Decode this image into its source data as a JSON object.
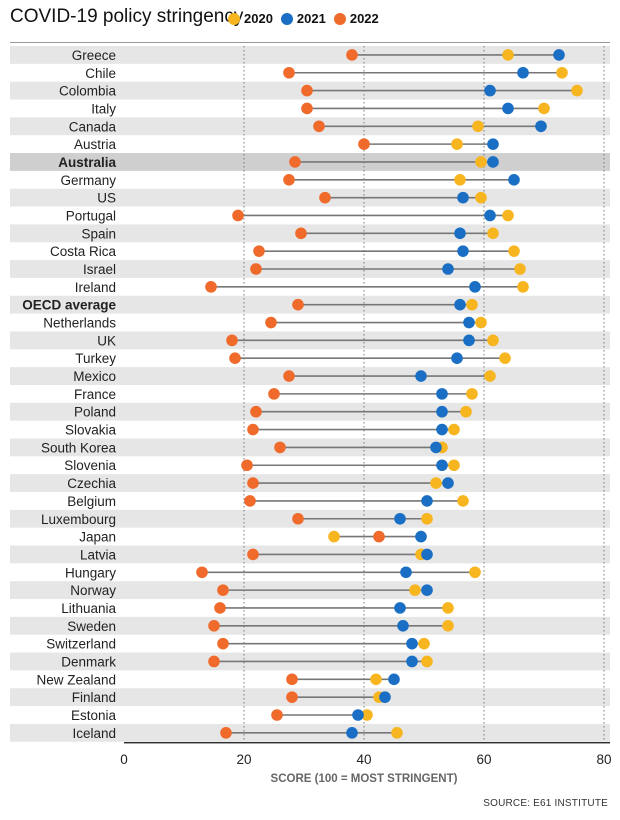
{
  "chart_data": {
    "type": "dumbbell",
    "title": "COVID-19 policy stringency",
    "xlabel": "SCORE (100 = MOST STRINGENT)",
    "xlim": [
      0,
      80
    ],
    "xticks": [
      0,
      20,
      40,
      60,
      80
    ],
    "source": "SOURCE: E61 INSTITUTE",
    "series": [
      {
        "name": "2020",
        "color": "#f7b520"
      },
      {
        "name": "2021",
        "color": "#1a6fc4"
      },
      {
        "name": "2022",
        "color": "#ef6a2b"
      }
    ],
    "rows": [
      {
        "country": "Greece",
        "v2020": 64,
        "v2021": 72.5,
        "v2022": 38,
        "bold": false,
        "highlight": false
      },
      {
        "country": "Chile",
        "v2020": 73,
        "v2021": 66.5,
        "v2022": 27.5,
        "bold": false,
        "highlight": false
      },
      {
        "country": "Colombia",
        "v2020": 75.5,
        "v2021": 61,
        "v2022": 30.5,
        "bold": false,
        "highlight": false
      },
      {
        "country": "Italy",
        "v2020": 70,
        "v2021": 64,
        "v2022": 30.5,
        "bold": false,
        "highlight": false
      },
      {
        "country": "Canada",
        "v2020": 59,
        "v2021": 69.5,
        "v2022": 32.5,
        "bold": false,
        "highlight": false
      },
      {
        "country": "Austria",
        "v2020": 55.5,
        "v2021": 61.5,
        "v2022": 40,
        "bold": false,
        "highlight": false
      },
      {
        "country": "Australia",
        "v2020": 59.5,
        "v2021": 61.5,
        "v2022": 28.5,
        "bold": true,
        "highlight": true
      },
      {
        "country": "Germany",
        "v2020": 56,
        "v2021": 65,
        "v2022": 27.5,
        "bold": false,
        "highlight": false
      },
      {
        "country": "US",
        "v2020": 59.5,
        "v2021": 56.5,
        "v2022": 33.5,
        "bold": false,
        "highlight": false
      },
      {
        "country": "Portugal",
        "v2020": 64,
        "v2021": 61,
        "v2022": 19,
        "bold": false,
        "highlight": false
      },
      {
        "country": "Spain",
        "v2020": 61.5,
        "v2021": 56,
        "v2022": 29.5,
        "bold": false,
        "highlight": false
      },
      {
        "country": "Costa Rica",
        "v2020": 65,
        "v2021": 56.5,
        "v2022": 22.5,
        "bold": false,
        "highlight": false
      },
      {
        "country": "Israel",
        "v2020": 66,
        "v2021": 54,
        "v2022": 22,
        "bold": false,
        "highlight": false
      },
      {
        "country": "Ireland",
        "v2020": 66.5,
        "v2021": 58.5,
        "v2022": 14.5,
        "bold": false,
        "highlight": false
      },
      {
        "country": "OECD average",
        "v2020": 58,
        "v2021": 56,
        "v2022": 29,
        "bold": true,
        "highlight": false
      },
      {
        "country": "Netherlands",
        "v2020": 59.5,
        "v2021": 57.5,
        "v2022": 24.5,
        "bold": false,
        "highlight": false
      },
      {
        "country": "UK",
        "v2020": 61.5,
        "v2021": 57.5,
        "v2022": 18,
        "bold": false,
        "highlight": false
      },
      {
        "country": "Turkey",
        "v2020": 63.5,
        "v2021": 55.5,
        "v2022": 18.5,
        "bold": false,
        "highlight": false
      },
      {
        "country": "Mexico",
        "v2020": 61,
        "v2021": 49.5,
        "v2022": 27.5,
        "bold": false,
        "highlight": false
      },
      {
        "country": "France",
        "v2020": 58,
        "v2021": 53,
        "v2022": 25,
        "bold": false,
        "highlight": false
      },
      {
        "country": "Poland",
        "v2020": 57,
        "v2021": 53,
        "v2022": 22,
        "bold": false,
        "highlight": false
      },
      {
        "country": "Slovakia",
        "v2020": 55,
        "v2021": 53,
        "v2022": 21.5,
        "bold": false,
        "highlight": false
      },
      {
        "country": "South Korea",
        "v2020": 53,
        "v2021": 52,
        "v2022": 26,
        "bold": false,
        "highlight": false
      },
      {
        "country": "Slovenia",
        "v2020": 55,
        "v2021": 53,
        "v2022": 20.5,
        "bold": false,
        "highlight": false
      },
      {
        "country": "Czechia",
        "v2020": 52,
        "v2021": 54,
        "v2022": 21.5,
        "bold": false,
        "highlight": false
      },
      {
        "country": "Belgium",
        "v2020": 56.5,
        "v2021": 50.5,
        "v2022": 21,
        "bold": false,
        "highlight": false
      },
      {
        "country": "Luxembourg",
        "v2020": 50.5,
        "v2021": 46,
        "v2022": 29,
        "bold": false,
        "highlight": false
      },
      {
        "country": "Japan",
        "v2020": 35,
        "v2021": 49.5,
        "v2022": 42.5,
        "bold": false,
        "highlight": false
      },
      {
        "country": "Latvia",
        "v2020": 49.5,
        "v2021": 50.5,
        "v2022": 21.5,
        "bold": false,
        "highlight": false
      },
      {
        "country": "Hungary",
        "v2020": 58.5,
        "v2021": 47,
        "v2022": 13,
        "bold": false,
        "highlight": false
      },
      {
        "country": "Norway",
        "v2020": 48.5,
        "v2021": 50.5,
        "v2022": 16.5,
        "bold": false,
        "highlight": false
      },
      {
        "country": "Lithuania",
        "v2020": 54,
        "v2021": 46,
        "v2022": 16,
        "bold": false,
        "highlight": false
      },
      {
        "country": "Sweden",
        "v2020": 54,
        "v2021": 46.5,
        "v2022": 15,
        "bold": false,
        "highlight": false
      },
      {
        "country": "Switzerland",
        "v2020": 50,
        "v2021": 48,
        "v2022": 16.5,
        "bold": false,
        "highlight": false
      },
      {
        "country": "Denmark",
        "v2020": 50.5,
        "v2021": 48,
        "v2022": 15,
        "bold": false,
        "highlight": false
      },
      {
        "country": "New Zealand",
        "v2020": 42,
        "v2021": 45,
        "v2022": 28,
        "bold": false,
        "highlight": false
      },
      {
        "country": "Finland",
        "v2020": 42.5,
        "v2021": 43.5,
        "v2022": 28,
        "bold": false,
        "highlight": false
      },
      {
        "country": "Estonia",
        "v2020": 40.5,
        "v2021": 39,
        "v2022": 25.5,
        "bold": false,
        "highlight": false
      },
      {
        "country": "Iceland",
        "v2020": 45.5,
        "v2021": 38,
        "v2022": 17,
        "bold": false,
        "highlight": false
      }
    ]
  }
}
